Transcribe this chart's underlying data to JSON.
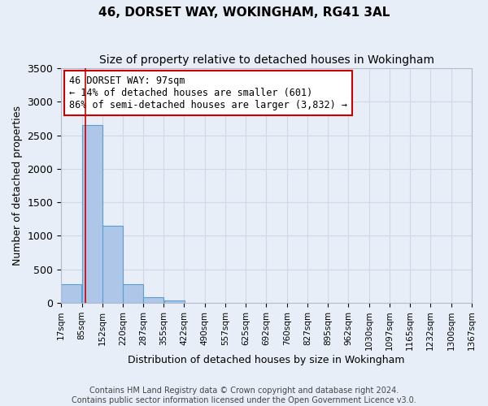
{
  "title": "46, DORSET WAY, WOKINGHAM, RG41 3AL",
  "subtitle": "Size of property relative to detached houses in Wokingham",
  "xlabel": "Distribution of detached houses by size in Wokingham",
  "ylabel": "Number of detached properties",
  "bar_left_edges": [
    17,
    85,
    152,
    220,
    287,
    355,
    422,
    490,
    557,
    625,
    692,
    760,
    827,
    895,
    962,
    1030,
    1097,
    1165,
    1232,
    1300
  ],
  "bar_heights": [
    280,
    2650,
    1150,
    280,
    90,
    30,
    0,
    0,
    0,
    0,
    0,
    0,
    0,
    0,
    0,
    0,
    0,
    0,
    0,
    0
  ],
  "bin_width": 68,
  "bar_color": "#aec6e8",
  "bar_edge_color": "#5a9fd4",
  "vline_x": 97,
  "vline_color": "#cc0000",
  "annotation_text": "46 DORSET WAY: 97sqm\n← 14% of detached houses are smaller (601)\n86% of semi-detached houses are larger (3,832) →",
  "annotation_box_color": "#ffffff",
  "annotation_border_color": "#cc0000",
  "ylim": [
    0,
    3500
  ],
  "tick_labels": [
    "17sqm",
    "85sqm",
    "152sqm",
    "220sqm",
    "287sqm",
    "355sqm",
    "422sqm",
    "490sqm",
    "557sqm",
    "625sqm",
    "692sqm",
    "760sqm",
    "827sqm",
    "895sqm",
    "962sqm",
    "1030sqm",
    "1097sqm",
    "1165sqm",
    "1232sqm",
    "1300sqm",
    "1367sqm"
  ],
  "grid_color": "#d0d8e8",
  "background_color": "#e8eef8",
  "footer_line1": "Contains HM Land Registry data © Crown copyright and database right 2024.",
  "footer_line2": "Contains public sector information licensed under the Open Government Licence v3.0.",
  "title_fontsize": 11,
  "subtitle_fontsize": 10,
  "axis_label_fontsize": 9,
  "tick_fontsize": 7.5,
  "annotation_fontsize": 8.5,
  "footer_fontsize": 7
}
